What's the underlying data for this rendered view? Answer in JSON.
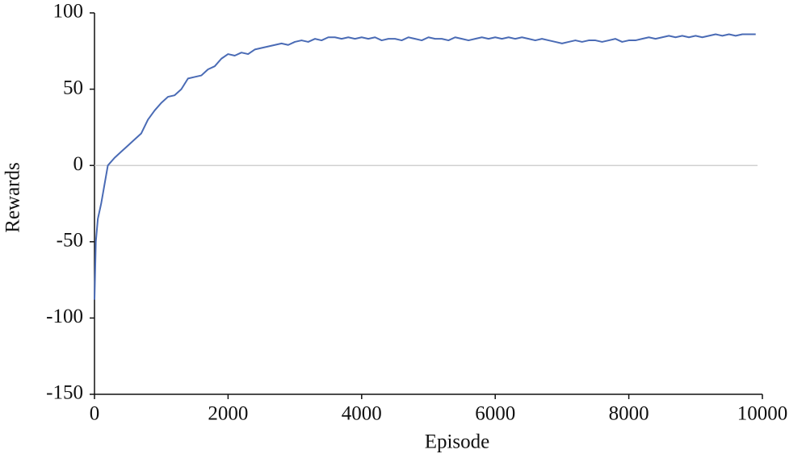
{
  "chart_data": {
    "type": "line",
    "xlabel": "Episode",
    "ylabel": "Rewards",
    "x": [
      0,
      20,
      50,
      100,
      200,
      300,
      400,
      500,
      600,
      700,
      800,
      900,
      1000,
      1100,
      1200,
      1300,
      1400,
      1500,
      1600,
      1700,
      1800,
      1900,
      2000,
      2100,
      2200,
      2300,
      2400,
      2500,
      2600,
      2700,
      2800,
      2900,
      3000,
      3100,
      3200,
      3300,
      3400,
      3500,
      3600,
      3700,
      3800,
      3900,
      4000,
      4100,
      4200,
      4300,
      4400,
      4500,
      4600,
      4700,
      4800,
      4900,
      5000,
      5100,
      5200,
      5300,
      5400,
      5500,
      5600,
      5700,
      5800,
      5900,
      6000,
      6100,
      6200,
      6300,
      6400,
      6500,
      6600,
      6700,
      6800,
      6900,
      7000,
      7100,
      7200,
      7300,
      7400,
      7500,
      7600,
      7700,
      7800,
      7900,
      8000,
      8100,
      8200,
      8300,
      8400,
      8500,
      8600,
      8700,
      8800,
      8900,
      9000,
      9100,
      9200,
      9300,
      9400,
      9500,
      9600,
      9700,
      9800,
      9900
    ],
    "values": [
      -88,
      -50,
      -35,
      -25,
      0,
      5,
      9,
      13,
      17,
      21,
      30,
      36,
      41,
      45,
      46,
      50,
      57,
      58,
      59,
      63,
      65,
      70,
      73,
      72,
      74,
      73,
      76,
      77,
      78,
      79,
      80,
      79,
      81,
      82,
      81,
      83,
      82,
      84,
      84,
      83,
      84,
      83,
      84,
      83,
      84,
      82,
      83,
      83,
      82,
      84,
      83,
      82,
      84,
      83,
      83,
      82,
      84,
      83,
      82,
      83,
      84,
      83,
      84,
      83,
      84,
      83,
      84,
      83,
      82,
      83,
      82,
      81,
      80,
      81,
      82,
      81,
      82,
      82,
      81,
      82,
      83,
      81,
      82,
      82,
      83,
      84,
      83,
      84,
      85,
      84,
      85,
      84,
      85,
      84,
      85,
      86,
      85,
      86,
      85,
      86,
      86,
      86
    ],
    "color": "#4a6bb5",
    "xlim": [
      0,
      10000
    ],
    "xticks": [
      0,
      2000,
      4000,
      6000,
      8000,
      10000
    ],
    "ylim": [
      -150,
      100
    ],
    "yticks": [
      -150,
      -100,
      -50,
      0,
      50,
      100
    ],
    "zero_line": true
  }
}
